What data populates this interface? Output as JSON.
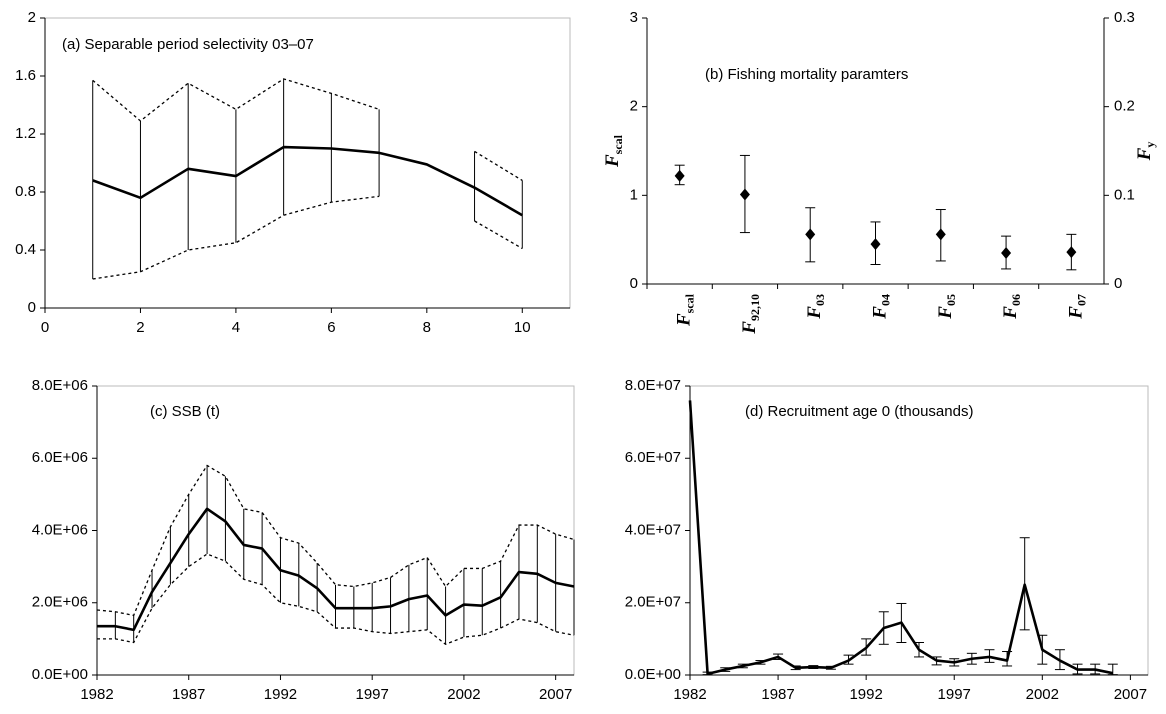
{
  "chart_data": [
    {
      "type": "line",
      "title": "(a) Separable period selectivity 03–07",
      "x": [
        1,
        2,
        3,
        4,
        5,
        6,
        7,
        8,
        9,
        10
      ],
      "series": [
        {
          "color": "#000000",
          "values": [
            0.88,
            0.76,
            0.96,
            0.91,
            1.11,
            1.1,
            1.07,
            0.99,
            0.83,
            0.64
          ],
          "upper": [
            1.57,
            1.29,
            1.55,
            1.37,
            1.58,
            1.48,
            1.37,
            null,
            1.08,
            0.88
          ],
          "lower": [
            0.2,
            0.25,
            0.4,
            0.45,
            0.64,
            0.73,
            0.77,
            null,
            0.6,
            0.41
          ]
        }
      ],
      "interval_style": "dotted-band",
      "frame": true,
      "xlim": [
        0,
        11
      ],
      "xticks": [
        0,
        2,
        4,
        6,
        8,
        10
      ],
      "ylim": [
        0,
        2
      ],
      "yticks": [
        0,
        0.4,
        0.8,
        1.2,
        1.6,
        2
      ]
    },
    {
      "type": "errorbar",
      "title": "(b) Fishing mortality paramters",
      "categories": [
        {
          "text": "F",
          "sub": "scal"
        },
        {
          "text": "F",
          "sub": "92,10"
        },
        {
          "text": "F",
          "sub": "03"
        },
        {
          "text": "F",
          "sub": "04"
        },
        {
          "text": "F",
          "sub": "05"
        },
        {
          "text": "F",
          "sub": "06"
        },
        {
          "text": "F",
          "sub": "07"
        }
      ],
      "series": [
        {
          "color": "#000000",
          "axis": "y",
          "values": [
            1.22,
            null,
            null,
            null,
            null,
            null,
            null
          ],
          "lower": [
            1.12,
            null,
            null,
            null,
            null,
            null,
            null
          ],
          "upper": [
            1.34,
            null,
            null,
            null,
            null,
            null,
            null
          ]
        },
        {
          "color": "#000000",
          "axis": "y2",
          "values": [
            null,
            0.101,
            0.056,
            0.045,
            0.056,
            0.035,
            0.036
          ],
          "lower": [
            null,
            0.058,
            0.025,
            0.022,
            0.026,
            0.017,
            0.016
          ],
          "upper": [
            null,
            0.145,
            0.086,
            0.07,
            0.084,
            0.054,
            0.056
          ]
        }
      ],
      "interval_style": "caps",
      "marker": "diamond",
      "frame": false,
      "ylabel": {
        "text": "F",
        "sub": "scal"
      },
      "y2label": {
        "text": "F",
        "sub": "y"
      },
      "ylim": [
        0,
        3
      ],
      "yticks": [
        0,
        1,
        2,
        3
      ],
      "y2lim": [
        0,
        0.3
      ],
      "y2ticks": [
        0,
        0.1,
        0.2,
        0.3
      ]
    },
    {
      "type": "line",
      "title": "(c) SSB (t)",
      "x": [
        1982,
        1983,
        1984,
        1985,
        1986,
        1987,
        1988,
        1989,
        1990,
        1991,
        1992,
        1993,
        1994,
        1995,
        1996,
        1997,
        1998,
        1999,
        2000,
        2001,
        2002,
        2003,
        2004,
        2005,
        2006,
        2007,
        2008
      ],
      "series": [
        {
          "color": "#000000",
          "values": [
            1350000,
            1350000,
            1250000,
            2300000,
            3100000,
            3900000,
            4600000,
            4250000,
            3600000,
            3500000,
            2900000,
            2750000,
            2400000,
            1850000,
            1850000,
            1850000,
            1900000,
            2100000,
            2200000,
            1650000,
            1950000,
            1920000,
            2150000,
            2850000,
            2800000,
            2550000,
            2450000
          ],
          "upper": [
            1800000,
            1750000,
            1650000,
            2900000,
            4100000,
            5000000,
            5800000,
            5500000,
            4600000,
            4500000,
            3800000,
            3650000,
            3100000,
            2500000,
            2450000,
            2550000,
            2700000,
            3050000,
            3250000,
            2450000,
            2950000,
            2950000,
            3150000,
            4150000,
            4150000,
            3900000,
            3750000
          ],
          "lower": [
            1000000,
            1000000,
            900000,
            1850000,
            2500000,
            3000000,
            3350000,
            3150000,
            2650000,
            2500000,
            2000000,
            1900000,
            1750000,
            1300000,
            1300000,
            1200000,
            1150000,
            1200000,
            1250000,
            850000,
            1050000,
            1100000,
            1300000,
            1550000,
            1450000,
            1200000,
            1100000
          ]
        }
      ],
      "interval_style": "dotted-band",
      "frame": true,
      "xlim": [
        1982,
        2008
      ],
      "xticks": [
        1982,
        1987,
        1992,
        1997,
        2002,
        2007
      ],
      "ylim": [
        0,
        8000000
      ],
      "yticks": [
        {
          "value": 0,
          "label": "0.0E+00"
        },
        {
          "value": 2000000,
          "label": "2.0E+06"
        },
        {
          "value": 4000000,
          "label": "4.0E+06"
        },
        {
          "value": 6000000,
          "label": "6.0E+06"
        },
        {
          "value": 8000000,
          "label": "8.0E+06"
        }
      ]
    },
    {
      "type": "line",
      "title": "(d) Recruitment age 0 (thousands)",
      "x": [
        1982,
        1983,
        1984,
        1985,
        1986,
        1987,
        1988,
        1989,
        1990,
        1991,
        1992,
        1993,
        1994,
        1995,
        1996,
        1997,
        1998,
        1999,
        2000,
        2001,
        2002,
        2003,
        2004,
        2005,
        2006
      ],
      "series": [
        {
          "color": "#000000",
          "values": [
            76000000,
            300000,
            1500000,
            2500000,
            3500000,
            5000000,
            2000000,
            2200000,
            2000000,
            4000000,
            7500000,
            13000000,
            14500000,
            7000000,
            4000000,
            3500000,
            4500000,
            5000000,
            4000000,
            25000000,
            7000000,
            4000000,
            1500000,
            1500000,
            500000
          ],
          "upper": [
            null,
            800000,
            2000000,
            3000000,
            4000000,
            5800000,
            2500000,
            2600000,
            2400000,
            5500000,
            10000000,
            17500000,
            19800000,
            9000000,
            5000000,
            4500000,
            6000000,
            7000000,
            6500000,
            38000000,
            11000000,
            7000000,
            3000000,
            3000000,
            3000000
          ],
          "lower": [
            null,
            100000,
            1000000,
            2000000,
            3000000,
            4300000,
            1500000,
            1800000,
            1600000,
            3000000,
            5500000,
            8500000,
            9000000,
            5000000,
            2800000,
            2500000,
            3000000,
            3500000,
            2500000,
            12500000,
            3000000,
            1500000,
            300000,
            300000,
            100000
          ]
        }
      ],
      "interval_style": "caps",
      "frame": true,
      "xlim": [
        1982,
        2008
      ],
      "xticks": [
        1982,
        1987,
        1992,
        1997,
        2002,
        2007
      ],
      "ylim": [
        0,
        80000000
      ],
      "yticks": [
        {
          "value": 0,
          "label": "0.0E+00"
        },
        {
          "value": 20000000,
          "label": "2.0E+07"
        },
        {
          "value": 40000000,
          "label": "4.0E+07"
        },
        {
          "value": 60000000,
          "label": "6.0E+07"
        },
        {
          "value": 80000000,
          "label": "8.0E+07"
        }
      ]
    }
  ]
}
